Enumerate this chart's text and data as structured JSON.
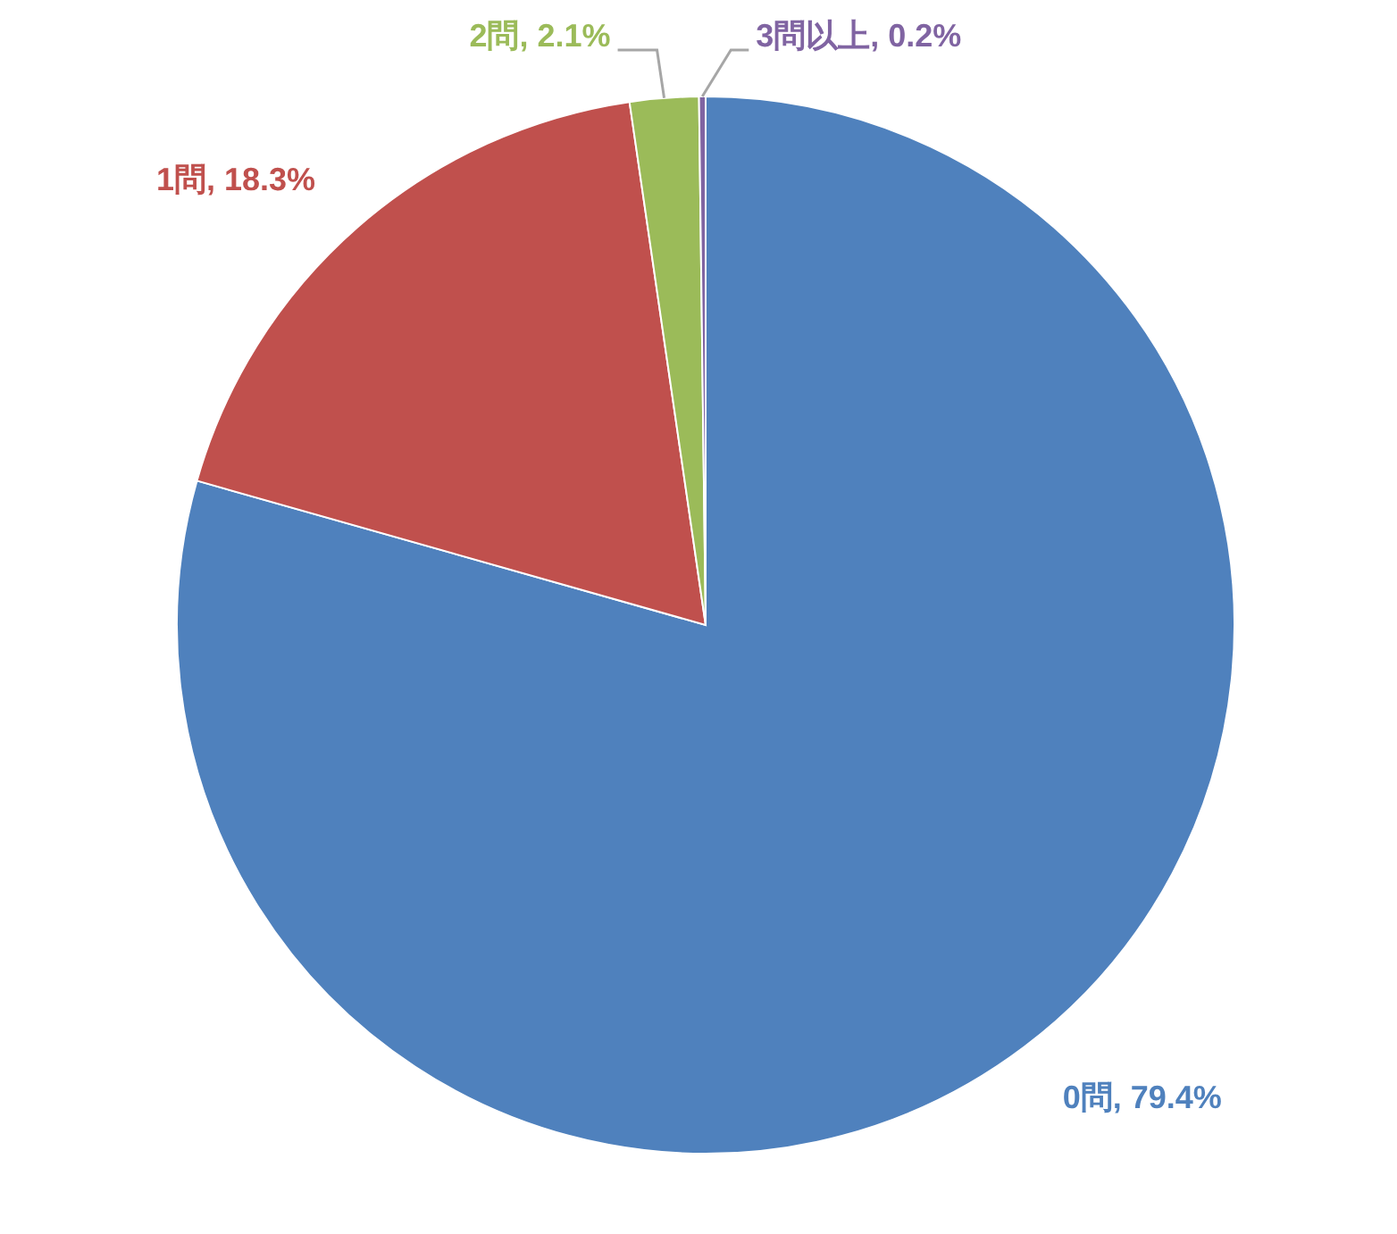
{
  "chart_data": {
    "type": "pie",
    "categories": [
      "0問",
      "1問",
      "2問",
      "3問以上"
    ],
    "values": [
      79.4,
      18.3,
      2.1,
      0.2
    ],
    "colors": [
      "#4f81bd",
      "#c0504d",
      "#9bbb59",
      "#8064a2"
    ],
    "value_labels": [
      "79.4%",
      "18.3%",
      "2.1%",
      "0.2%"
    ]
  }
}
